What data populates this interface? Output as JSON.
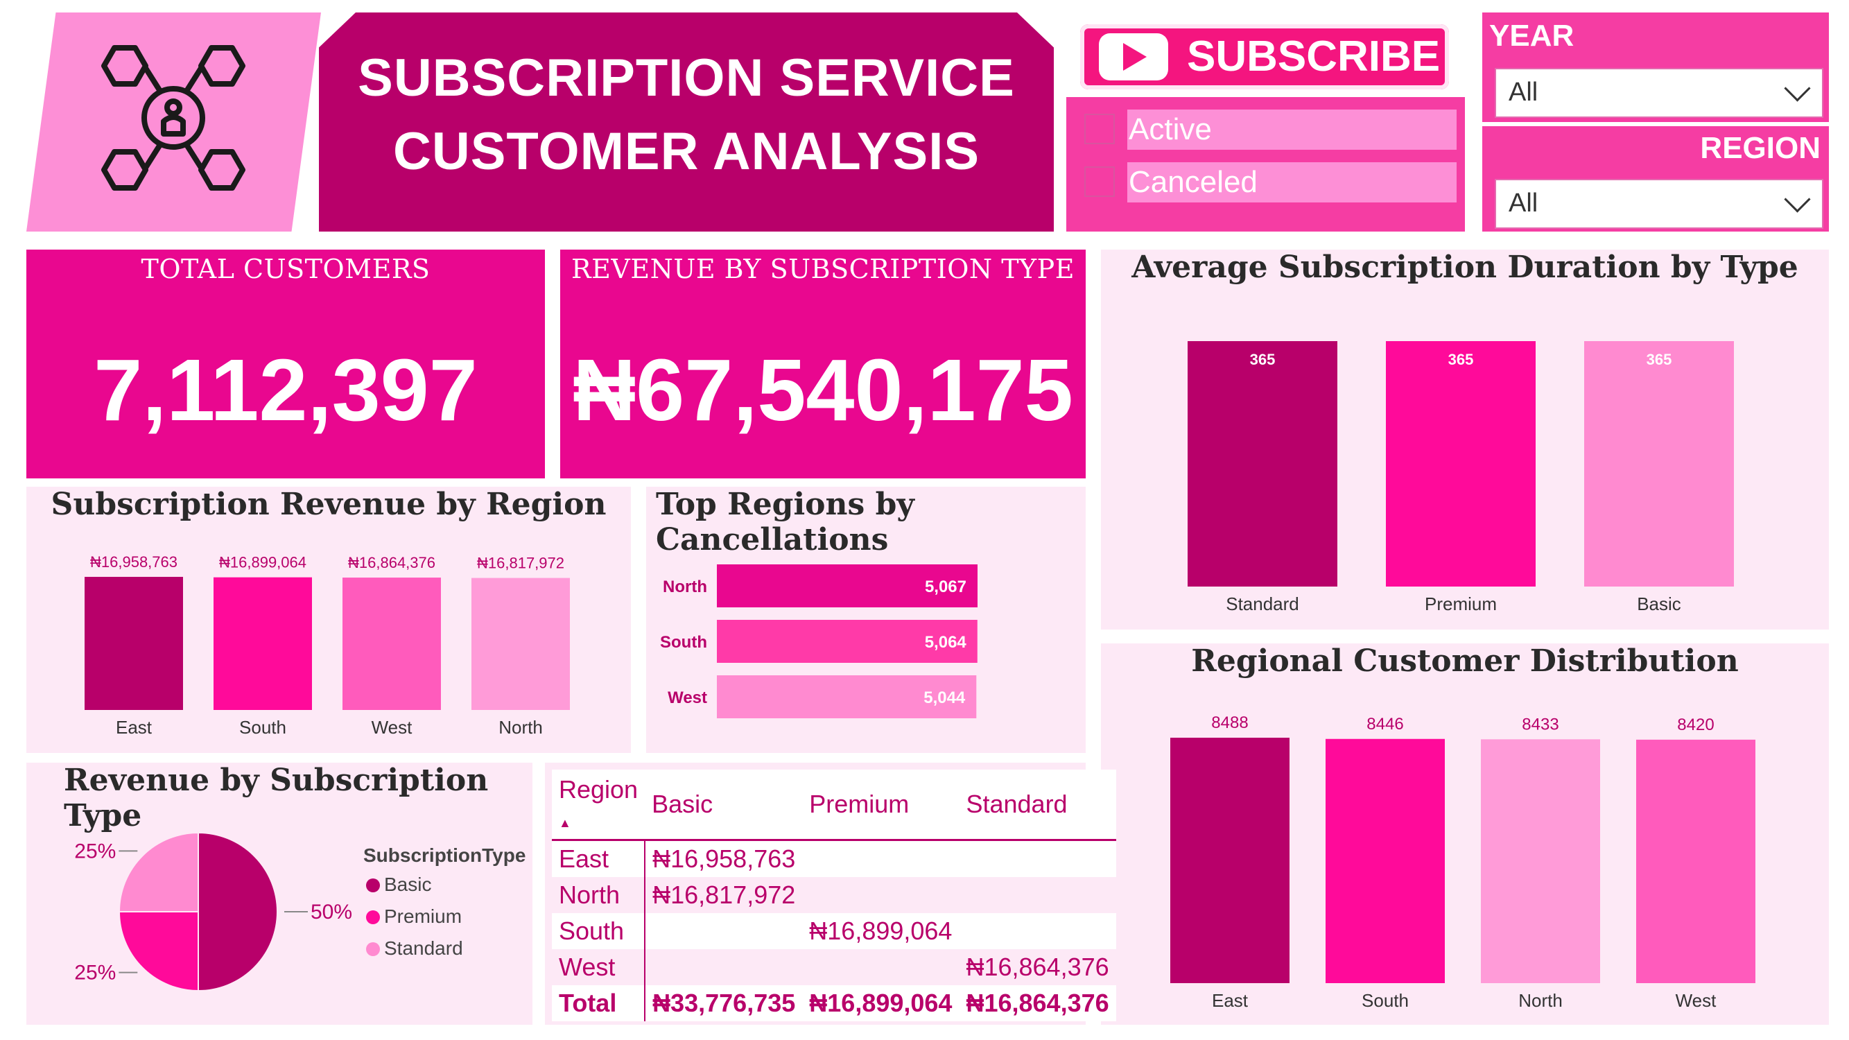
{
  "header": {
    "title_line1": "SUBSCRIPTION SERVICE",
    "title_line2": "CUSTOMER ANALYSIS",
    "logo_icon": "network-user-icon",
    "subscribe_label": "SUBSCRIBE",
    "subscribe_icon": "play-icon"
  },
  "status_filter": {
    "options": [
      {
        "label": "Active",
        "checked": false
      },
      {
        "label": "Canceled",
        "checked": false
      }
    ]
  },
  "year_slicer": {
    "title": "YEAR",
    "value": "All"
  },
  "region_slicer": {
    "title": "REGION",
    "value": "All"
  },
  "kpis": {
    "total_customers": {
      "label": "TOTAL CUSTOMERS",
      "value": "7,112,397"
    },
    "revenue": {
      "label": "REVENUE BY SUBSCRIPTION TYPE",
      "value": "₦67,540,175"
    }
  },
  "colors": {
    "dark": "#b8006a",
    "bright": "#ff0a9a",
    "mid": "#ff5bbc",
    "light": "#ff9bd8",
    "kpi": "#e9078f"
  },
  "chart_data": [
    {
      "id": "revenue_by_region",
      "type": "bar",
      "title": "Subscription Revenue by Region",
      "categories": [
        "East",
        "South",
        "West",
        "North"
      ],
      "values": [
        16958763,
        16899064,
        16864376,
        16817972
      ],
      "labels": [
        "₦16,958,763",
        "₦16,899,064",
        "₦16,864,376",
        "₦16,817,972"
      ],
      "colors": [
        "#b8006a",
        "#ff0a9a",
        "#ff5bbc",
        "#ff9bd8"
      ]
    },
    {
      "id": "top_cancellations",
      "type": "bar",
      "orientation": "horizontal",
      "title": "Top Regions by Cancellations",
      "categories": [
        "North",
        "South",
        "West"
      ],
      "values": [
        5067,
        5064,
        5044
      ],
      "labels": [
        "5,067",
        "5,064",
        "5,044"
      ],
      "colors": [
        "#e9078f",
        "#ff3aa8",
        "#ff8ad0"
      ]
    },
    {
      "id": "avg_duration",
      "type": "bar",
      "title": "Average Subscription Duration by Type",
      "categories": [
        "Standard",
        "Premium",
        "Basic"
      ],
      "values": [
        365,
        365,
        365
      ],
      "labels": [
        "365",
        "365",
        "365"
      ],
      "colors": [
        "#b8006a",
        "#ff0a9a",
        "#ff8ad0"
      ]
    },
    {
      "id": "regional_distribution",
      "type": "bar",
      "title": "Regional Customer Distribution",
      "categories": [
        "East",
        "South",
        "North",
        "West"
      ],
      "values": [
        8488,
        8446,
        8433,
        8420
      ],
      "labels": [
        "8488",
        "8446",
        "8433",
        "8420"
      ],
      "colors": [
        "#b8006a",
        "#ff0a9a",
        "#ff9bd8",
        "#ff5bbc"
      ]
    },
    {
      "id": "revenue_by_type",
      "type": "pie",
      "title": "Revenue by Subscription Type",
      "legend_title": "SubscriptionType",
      "categories": [
        "Basic",
        "Premium",
        "Standard"
      ],
      "values": [
        50,
        25,
        25
      ],
      "labels": [
        "50%",
        "25%",
        "25%"
      ],
      "colors": [
        "#b8006a",
        "#ff0a9a",
        "#ff8ad0"
      ]
    },
    {
      "id": "revenue_matrix",
      "type": "table",
      "columns": [
        "Region",
        "Basic",
        "Premium",
        "Standard"
      ],
      "rows": [
        [
          "East",
          "₦16,958,763",
          "",
          ""
        ],
        [
          "North",
          "₦16,817,972",
          "",
          ""
        ],
        [
          "South",
          "",
          "₦16,899,064",
          ""
        ],
        [
          "West",
          "",
          "",
          "₦16,864,376"
        ]
      ],
      "total": [
        "Total",
        "₦33,776,735",
        "₦16,899,064",
        "₦16,864,376"
      ]
    }
  ]
}
